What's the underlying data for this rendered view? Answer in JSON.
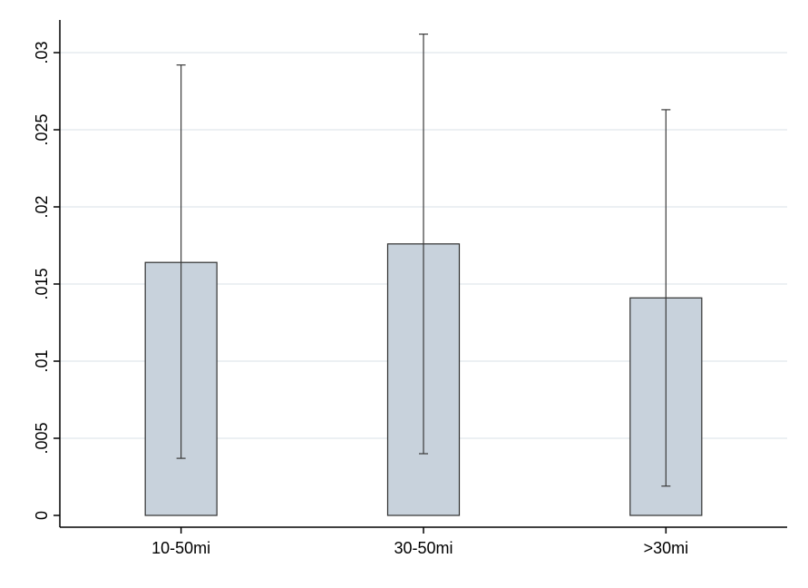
{
  "chart_data": {
    "type": "bar",
    "categories": [
      "10-50mi",
      "30-50mi",
      ">30mi"
    ],
    "values": [
      0.0164,
      0.0176,
      0.0141
    ],
    "error_low": [
      0.0037,
      0.004,
      0.0019
    ],
    "error_high": [
      0.0292,
      0.0312,
      0.0263
    ],
    "title": "",
    "xlabel": "",
    "ylabel": "",
    "ylim": [
      0,
      0.03
    ],
    "yticks": [
      0,
      0.005,
      0.01,
      0.015,
      0.02,
      0.025,
      0.03
    ],
    "ytick_labels": [
      "0",
      ".005",
      ".01",
      ".015",
      ".02",
      ".025",
      ".03"
    ],
    "grid": true,
    "colors": {
      "bar_fill": "#c8d2dc",
      "bar_stroke": "#2f2f2f",
      "error_bar": "#3a3a3a",
      "gridline": "#e6ebef"
    }
  }
}
